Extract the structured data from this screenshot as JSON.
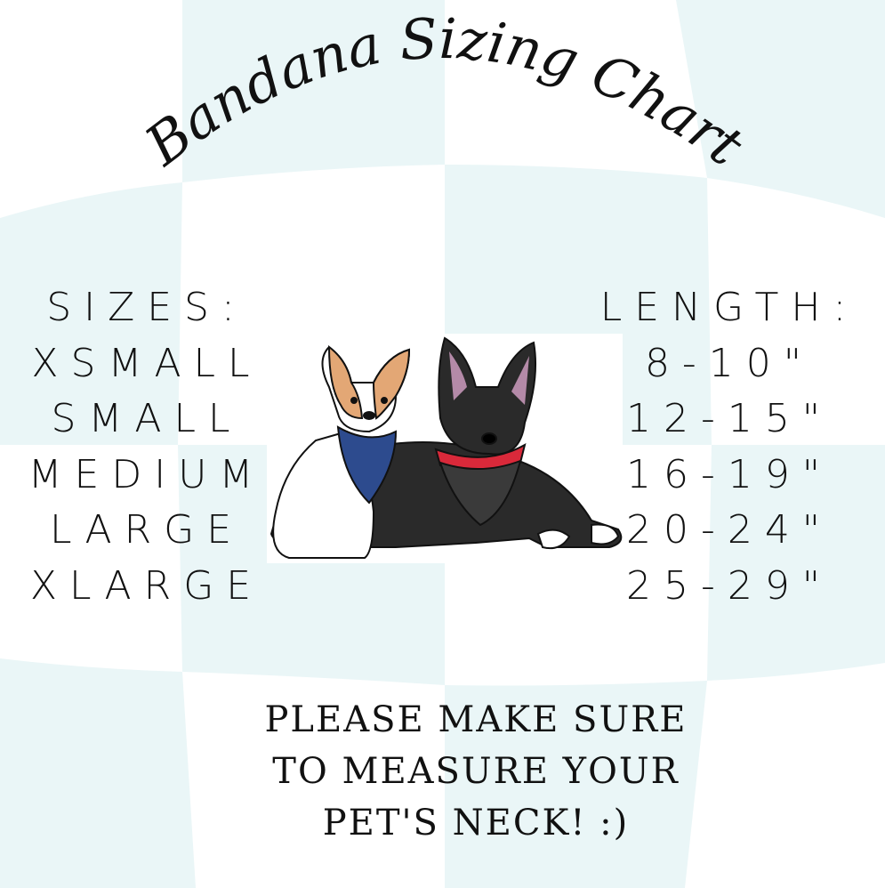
{
  "title": "Bandana  Sizing Chart",
  "colors": {
    "background_light": "#eaf6f7",
    "background_white": "#ffffff",
    "text": "#111111"
  },
  "sizes": {
    "header": "SIZES:",
    "items": [
      "XSMALL",
      "SMALL",
      "MEDIUM",
      "LARGE",
      "XLARGE"
    ]
  },
  "lengths": {
    "header": "LENGTH:",
    "items": [
      "8-10\"",
      "12-15\"",
      "16-19\"",
      "20-24\"",
      "25-29\""
    ]
  },
  "note": {
    "lines": [
      "PLEASE MAKE SURE",
      "TO MEASURE YOUR",
      "PET'S NECK! :)"
    ]
  },
  "illustration": "two-dogs-wearing-bandanas"
}
